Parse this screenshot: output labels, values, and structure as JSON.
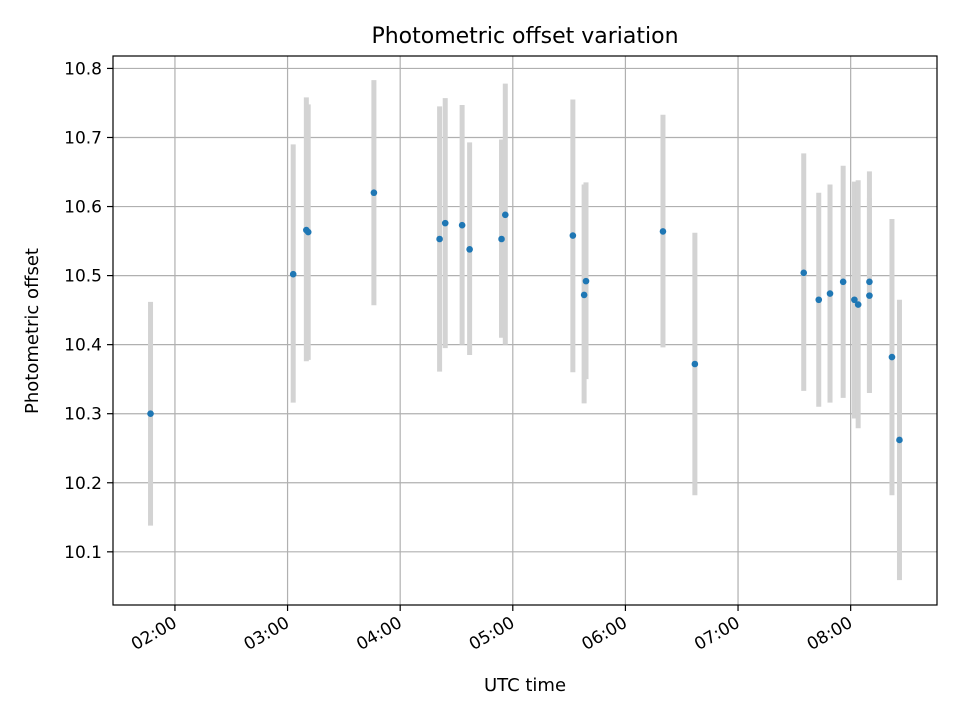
{
  "chart_data": {
    "type": "scatter",
    "title": "Photometric offset variation",
    "xlabel": "UTC time",
    "ylabel": "Photometric offset",
    "x_tick_labels": [
      "02:00",
      "03:00",
      "04:00",
      "05:00",
      "06:00",
      "07:00",
      "08:00"
    ],
    "y_tick_labels": [
      "10.1",
      "10.2",
      "10.3",
      "10.4",
      "10.5",
      "10.6",
      "10.7",
      "10.8"
    ],
    "xlim": [
      "01:27",
      "08:46"
    ],
    "ylim": [
      10.023,
      10.818
    ],
    "grid": true,
    "colors": {
      "points": "#1f77b4",
      "errorbars": "#d3d3d3",
      "grid": "#b0b0b0"
    },
    "series": [
      {
        "points": [
          {
            "x": "01:47",
            "y": 10.3,
            "yerr_low": 10.138,
            "yerr_high": 10.462
          },
          {
            "x": "03:03",
            "y": 10.502,
            "yerr_low": 10.316,
            "yerr_high": 10.69
          },
          {
            "x": "03:10",
            "y": 10.566,
            "yerr_low": 10.376,
            "yerr_high": 10.758
          },
          {
            "x": "03:11",
            "y": 10.563,
            "yerr_low": 10.378,
            "yerr_high": 10.748
          },
          {
            "x": "03:46",
            "y": 10.62,
            "yerr_low": 10.457,
            "yerr_high": 10.783
          },
          {
            "x": "04:21",
            "y": 10.553,
            "yerr_low": 10.361,
            "yerr_high": 10.745
          },
          {
            "x": "04:24",
            "y": 10.576,
            "yerr_low": 10.395,
            "yerr_high": 10.757
          },
          {
            "x": "04:33",
            "y": 10.573,
            "yerr_low": 10.4,
            "yerr_high": 10.747
          },
          {
            "x": "04:37",
            "y": 10.538,
            "yerr_low": 10.385,
            "yerr_high": 10.693
          },
          {
            "x": "04:54",
            "y": 10.553,
            "yerr_low": 10.41,
            "yerr_high": 10.697
          },
          {
            "x": "04:56",
            "y": 10.588,
            "yerr_low": 10.4,
            "yerr_high": 10.778
          },
          {
            "x": "05:32",
            "y": 10.558,
            "yerr_low": 10.36,
            "yerr_high": 10.755
          },
          {
            "x": "05:38",
            "y": 10.472,
            "yerr_low": 10.315,
            "yerr_high": 10.632
          },
          {
            "x": "05:39",
            "y": 10.492,
            "yerr_low": 10.35,
            "yerr_high": 10.635
          },
          {
            "x": "06:20",
            "y": 10.564,
            "yerr_low": 10.396,
            "yerr_high": 10.733
          },
          {
            "x": "06:37",
            "y": 10.372,
            "yerr_low": 10.182,
            "yerr_high": 10.562
          },
          {
            "x": "07:35",
            "y": 10.504,
            "yerr_low": 10.333,
            "yerr_high": 10.677
          },
          {
            "x": "07:43",
            "y": 10.465,
            "yerr_low": 10.31,
            "yerr_high": 10.62
          },
          {
            "x": "07:49",
            "y": 10.474,
            "yerr_low": 10.316,
            "yerr_high": 10.632
          },
          {
            "x": "07:56",
            "y": 10.491,
            "yerr_low": 10.323,
            "yerr_high": 10.659
          },
          {
            "x": "08:02",
            "y": 10.465,
            "yerr_low": 10.293,
            "yerr_high": 10.636
          },
          {
            "x": "08:04",
            "y": 10.458,
            "yerr_low": 10.279,
            "yerr_high": 10.638
          },
          {
            "x": "08:10",
            "y": 10.471,
            "yerr_low": 10.33,
            "yerr_high": 10.612
          },
          {
            "x": "08:10",
            "y": 10.491,
            "yerr_low": 10.331,
            "yerr_high": 10.651
          },
          {
            "x": "08:22",
            "y": 10.382,
            "yerr_low": 10.182,
            "yerr_high": 10.582
          },
          {
            "x": "08:26",
            "y": 10.262,
            "yerr_low": 10.059,
            "yerr_high": 10.465
          }
        ]
      }
    ]
  }
}
